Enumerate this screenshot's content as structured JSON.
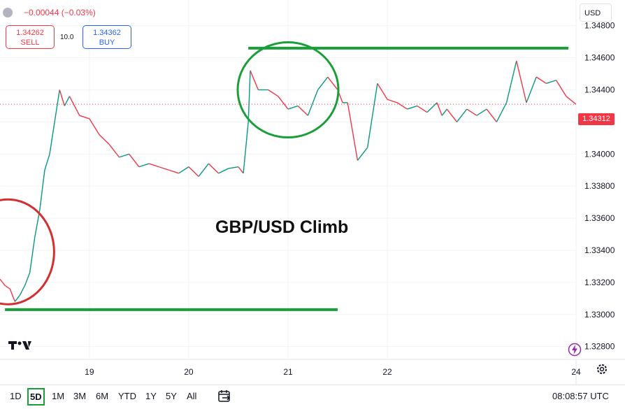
{
  "header": {
    "change_text": "−0.00044 (−0.03%)",
    "sell_price": "1.34262",
    "sell_label": "SELL",
    "spread": "10.0",
    "buy_price": "1.34362",
    "buy_label": "BUY",
    "currency": "USD"
  },
  "annotation_text": "GBP/USD Climb",
  "last_price_label": "1.34312",
  "footer": {
    "ranges": [
      "1D",
      "5D",
      "1M",
      "3M",
      "6M",
      "YTD",
      "1Y",
      "5Y",
      "All"
    ],
    "active_range": "5D",
    "time": "08:08:57 UTC"
  },
  "colors": {
    "up": "#089981",
    "down": "#f23645",
    "highlight_green": "#1a9e3a",
    "highlight_red": "#d32f2f"
  },
  "icons": [
    "tradingview-logo-icon",
    "calendar-range-icon",
    "gear-icon",
    "lightning-icon"
  ],
  "chart_data": {
    "type": "line",
    "title": "",
    "xlabel": "",
    "ylabel": "",
    "x_ticks": [
      "19",
      "20",
      "21",
      "22",
      "24"
    ],
    "y_ticks": [
      "1.34800",
      "1.34600",
      "1.34400",
      "1.34200",
      "1.34000",
      "1.33800",
      "1.33600",
      "1.33400",
      "1.33200",
      "1.33000",
      "1.32800"
    ],
    "ylim": [
      1.3272,
      1.3496
    ],
    "xlim": [
      18.1,
      23.9
    ],
    "series": [
      {
        "x": [
          18.1,
          18.15,
          18.2,
          18.25,
          18.3,
          18.35,
          18.4,
          18.45,
          18.5,
          18.55,
          18.6,
          18.65,
          18.7,
          18.75,
          18.8,
          18.9,
          19.0,
          19.1,
          19.2,
          19.3,
          19.4,
          19.5,
          19.6,
          19.7,
          19.8,
          19.9,
          20.0,
          20.1,
          20.2,
          20.3,
          20.4,
          20.5,
          20.55,
          20.6,
          20.62,
          20.7,
          20.8,
          20.9,
          21.0,
          21.1,
          21.2,
          21.3,
          21.4,
          21.5,
          21.55,
          21.6,
          21.7,
          21.8,
          21.9,
          22.0,
          22.1,
          22.2,
          22.3,
          22.4,
          22.5,
          22.55,
          22.6,
          22.7,
          22.8,
          22.9,
          23.0,
          23.1,
          23.2,
          23.3,
          23.4,
          23.5,
          23.6,
          23.7,
          23.8,
          23.9
        ],
        "values": [
          1.3322,
          1.3318,
          1.3316,
          1.3308,
          1.3312,
          1.3318,
          1.3326,
          1.3348,
          1.3365,
          1.339,
          1.34,
          1.342,
          1.344,
          1.343,
          1.3436,
          1.3424,
          1.3422,
          1.3412,
          1.3406,
          1.3398,
          1.34,
          1.3392,
          1.3394,
          1.3392,
          1.339,
          1.3388,
          1.3392,
          1.3386,
          1.3394,
          1.3388,
          1.3391,
          1.3392,
          1.3388,
          1.342,
          1.3452,
          1.344,
          1.344,
          1.3436,
          1.3428,
          1.343,
          1.3424,
          1.344,
          1.3448,
          1.344,
          1.3432,
          1.3432,
          1.3396,
          1.3404,
          1.3444,
          1.3434,
          1.3432,
          1.3428,
          1.343,
          1.3426,
          1.3432,
          1.3424,
          1.3428,
          1.342,
          1.3428,
          1.3424,
          1.3428,
          1.342,
          1.3432,
          1.3458,
          1.3432,
          1.3448,
          1.3444,
          1.3446,
          1.3436,
          1.3431
        ]
      }
    ],
    "horizontal_lines": [
      {
        "y": 1.3466,
        "x_start": 20.6,
        "x_end": 23.9
      },
      {
        "y": 1.3303,
        "x_start": 18.15,
        "x_end": 21.5
      }
    ],
    "circles": [
      {
        "cx": 21.0,
        "cy": 1.344
      },
      {
        "cx": 18.18,
        "cy": 1.3339
      }
    ],
    "grid": true
  }
}
